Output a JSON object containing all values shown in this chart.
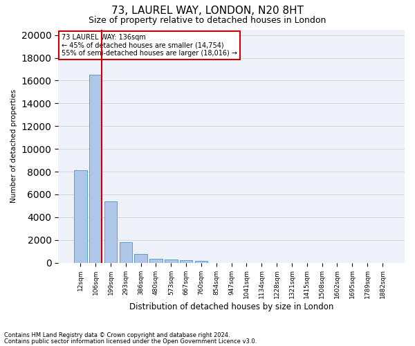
{
  "title1": "73, LAUREL WAY, LONDON, N20 8HT",
  "title2": "Size of property relative to detached houses in London",
  "xlabel": "Distribution of detached houses by size in London",
  "ylabel": "Number of detached properties",
  "footnote1": "Contains HM Land Registry data © Crown copyright and database right 2024.",
  "footnote2": "Contains public sector information licensed under the Open Government Licence v3.0.",
  "bar_labels": [
    "12sqm",
    "106sqm",
    "199sqm",
    "293sqm",
    "386sqm",
    "480sqm",
    "573sqm",
    "667sqm",
    "760sqm",
    "854sqm",
    "947sqm",
    "1041sqm",
    "1134sqm",
    "1228sqm",
    "1321sqm",
    "1415sqm",
    "1508sqm",
    "1602sqm",
    "1695sqm",
    "1789sqm",
    "1882sqm"
  ],
  "bar_values": [
    8100,
    16500,
    5400,
    1800,
    750,
    350,
    275,
    210,
    150,
    0,
    0,
    0,
    0,
    0,
    0,
    0,
    0,
    0,
    0,
    0,
    0
  ],
  "bar_color": "#aec6e8",
  "bar_edgecolor": "#5a9fd4",
  "vline_x_index": 1,
  "vline_color": "#cc0000",
  "annotation_text": "73 LAUREL WAY: 136sqm\n← 45% of detached houses are smaller (14,754)\n55% of semi-detached houses are larger (18,016) →",
  "annotation_box_edgecolor": "#cc0000",
  "annotation_box_facecolor": "white",
  "ylim": [
    0,
    20500
  ],
  "yticks": [
    0,
    2000,
    4000,
    6000,
    8000,
    10000,
    12000,
    14000,
    16000,
    18000,
    20000
  ],
  "grid_color": "#d0d8e8",
  "bg_color": "#eef2f8",
  "title1_fontsize": 11,
  "title2_fontsize": 9,
  "bar_width": 0.85
}
